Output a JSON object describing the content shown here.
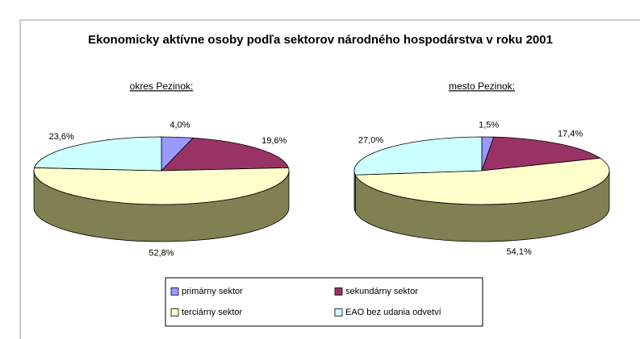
{
  "title": "Ekonomicky aktívne osoby podľa sektorov národného hospodárstva v roku 2001",
  "chart_data": [
    {
      "type": "pie",
      "title": "okres Pezinok:",
      "categories": [
        "primárny sektor",
        "sekundárny sektor",
        "terciárny sektor",
        "EAO bez udania odvetví"
      ],
      "values": [
        4.0,
        19.6,
        52.8,
        23.6
      ],
      "value_labels": [
        "4,0%",
        "19,6%",
        "52,8%",
        "23,6%"
      ],
      "colors": [
        "#9999ff",
        "#993366",
        "#ffffcc",
        "#ccffff"
      ]
    },
    {
      "type": "pie",
      "title": "mesto Pezinok:",
      "categories": [
        "primárny sektor",
        "sekundárny sektor",
        "terciárny sektor",
        "EAO bez udania odvetví"
      ],
      "values": [
        1.5,
        17.4,
        54.1,
        27.0
      ],
      "value_labels": [
        "1,5%",
        "17,4%",
        "54,1%",
        "27,0%"
      ],
      "colors": [
        "#9999ff",
        "#993366",
        "#ffffcc",
        "#ccffff"
      ]
    }
  ]
}
